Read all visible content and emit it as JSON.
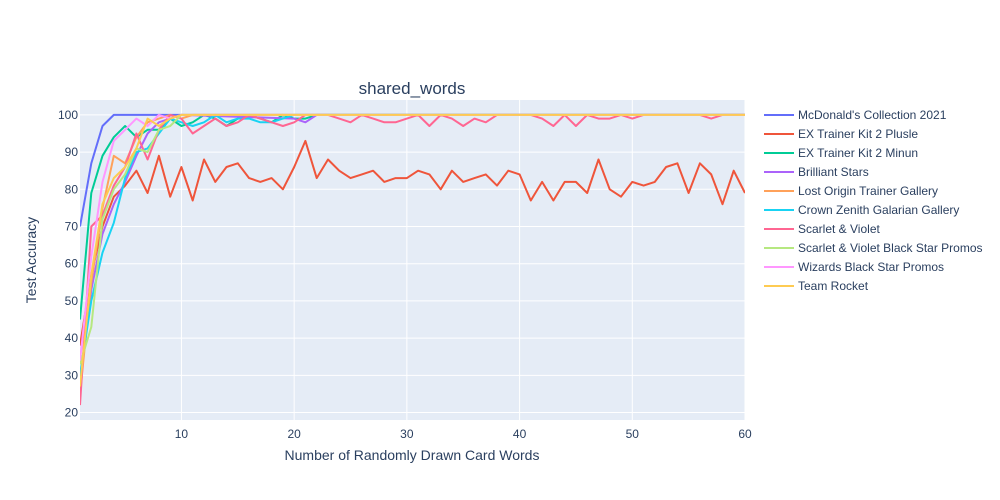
{
  "chart_data": {
    "type": "line",
    "title": "shared_words",
    "xlabel": "Number of Randomly Drawn Card Words",
    "ylabel": "Test Accuracy",
    "xlim": [
      1,
      60
    ],
    "ylim": [
      18,
      104
    ],
    "xticks": [
      10,
      20,
      30,
      40,
      50,
      60
    ],
    "yticks": [
      20,
      30,
      40,
      50,
      60,
      70,
      80,
      90,
      100
    ],
    "grid": true,
    "legend_position": "right",
    "series": [
      {
        "name": "McDonald's Collection 2021",
        "color": "#636efa",
        "points": [
          [
            1,
            70
          ],
          [
            2,
            87
          ],
          [
            3,
            97
          ],
          [
            4,
            100
          ],
          [
            5,
            100
          ],
          [
            6,
            100
          ],
          [
            7,
            100
          ],
          [
            8,
            100
          ],
          [
            9,
            100
          ],
          [
            10,
            100
          ],
          [
            20,
            100
          ],
          [
            30,
            100
          ],
          [
            40,
            100
          ],
          [
            50,
            100
          ],
          [
            60,
            100
          ]
        ]
      },
      {
        "name": "EX Trainer Kit 2 Plusle",
        "color": "#ef553b",
        "points": [
          [
            1,
            38
          ],
          [
            2,
            57
          ],
          [
            3,
            70
          ],
          [
            4,
            78
          ],
          [
            5,
            81
          ],
          [
            6,
            85
          ],
          [
            7,
            79
          ],
          [
            8,
            89
          ],
          [
            9,
            78
          ],
          [
            10,
            86
          ],
          [
            11,
            77
          ],
          [
            12,
            88
          ],
          [
            13,
            82
          ],
          [
            14,
            86
          ],
          [
            15,
            87
          ],
          [
            16,
            83
          ],
          [
            17,
            82
          ],
          [
            18,
            83
          ],
          [
            19,
            80
          ],
          [
            20,
            86
          ],
          [
            21,
            93
          ],
          [
            22,
            83
          ],
          [
            23,
            88
          ],
          [
            24,
            85
          ],
          [
            25,
            83
          ],
          [
            26,
            84
          ],
          [
            27,
            85
          ],
          [
            28,
            82
          ],
          [
            29,
            83
          ],
          [
            30,
            83
          ],
          [
            31,
            85
          ],
          [
            32,
            84
          ],
          [
            33,
            80
          ],
          [
            34,
            85
          ],
          [
            35,
            82
          ],
          [
            36,
            83
          ],
          [
            37,
            84
          ],
          [
            38,
            81
          ],
          [
            39,
            85
          ],
          [
            40,
            84
          ],
          [
            41,
            77
          ],
          [
            42,
            82
          ],
          [
            43,
            77
          ],
          [
            44,
            82
          ],
          [
            45,
            82
          ],
          [
            46,
            79
          ],
          [
            47,
            88
          ],
          [
            48,
            80
          ],
          [
            49,
            78
          ],
          [
            50,
            82
          ],
          [
            51,
            81
          ],
          [
            52,
            82
          ],
          [
            53,
            86
          ],
          [
            54,
            87
          ],
          [
            55,
            79
          ],
          [
            56,
            87
          ],
          [
            57,
            84
          ],
          [
            58,
            76
          ],
          [
            59,
            85
          ],
          [
            60,
            79
          ]
        ]
      },
      {
        "name": "EX Trainer Kit 2 Minun",
        "color": "#00cc96",
        "points": [
          [
            1,
            45
          ],
          [
            2,
            79
          ],
          [
            3,
            89
          ],
          [
            4,
            94
          ],
          [
            5,
            97
          ],
          [
            6,
            94
          ],
          [
            7,
            96
          ],
          [
            8,
            96
          ],
          [
            9,
            99
          ],
          [
            10,
            97
          ],
          [
            11,
            98
          ],
          [
            12,
            100
          ],
          [
            13,
            99
          ],
          [
            14,
            97
          ],
          [
            15,
            99
          ],
          [
            16,
            100
          ],
          [
            17,
            99
          ],
          [
            18,
            98
          ],
          [
            19,
            100
          ],
          [
            20,
            99
          ],
          [
            21,
            99
          ],
          [
            22,
            100
          ],
          [
            30,
            100
          ],
          [
            40,
            100
          ],
          [
            50,
            100
          ],
          [
            60,
            100
          ]
        ]
      },
      {
        "name": "Brilliant Stars",
        "color": "#ab63fa",
        "points": [
          [
            1,
            28
          ],
          [
            2,
            53
          ],
          [
            3,
            68
          ],
          [
            4,
            76
          ],
          [
            5,
            82
          ],
          [
            6,
            89
          ],
          [
            7,
            95
          ],
          [
            8,
            98
          ],
          [
            9,
            99
          ],
          [
            10,
            100
          ],
          [
            20,
            99
          ],
          [
            21,
            98
          ],
          [
            22,
            100
          ],
          [
            30,
            100
          ],
          [
            40,
            100
          ],
          [
            50,
            100
          ],
          [
            60,
            100
          ]
        ]
      },
      {
        "name": "Lost Origin Trainer Gallery",
        "color": "#ffa15a",
        "points": [
          [
            1,
            25
          ],
          [
            2,
            55
          ],
          [
            3,
            75
          ],
          [
            4,
            89
          ],
          [
            5,
            87
          ],
          [
            6,
            94
          ],
          [
            7,
            98
          ],
          [
            8,
            99
          ],
          [
            9,
            100
          ],
          [
            10,
            99
          ],
          [
            11,
            100
          ],
          [
            20,
            100
          ],
          [
            30,
            100
          ],
          [
            40,
            100
          ],
          [
            50,
            100
          ],
          [
            60,
            100
          ]
        ]
      },
      {
        "name": "Crown Zenith Galarian Gallery",
        "color": "#19d3f3",
        "points": [
          [
            1,
            30
          ],
          [
            2,
            50
          ],
          [
            3,
            63
          ],
          [
            4,
            71
          ],
          [
            5,
            83
          ],
          [
            6,
            90
          ],
          [
            7,
            91
          ],
          [
            8,
            95
          ],
          [
            9,
            99
          ],
          [
            10,
            98
          ],
          [
            11,
            97
          ],
          [
            12,
            98
          ],
          [
            13,
            100
          ],
          [
            14,
            98
          ],
          [
            15,
            99
          ],
          [
            16,
            99
          ],
          [
            17,
            98
          ],
          [
            18,
            98
          ],
          [
            19,
            99
          ],
          [
            20,
            100
          ],
          [
            21,
            100
          ],
          [
            30,
            100
          ],
          [
            40,
            100
          ],
          [
            50,
            100
          ],
          [
            60,
            100
          ]
        ]
      },
      {
        "name": "Scarlet & Violet",
        "color": "#ff6692",
        "points": [
          [
            1,
            22
          ],
          [
            2,
            70
          ],
          [
            3,
            73
          ],
          [
            4,
            81
          ],
          [
            5,
            86
          ],
          [
            6,
            95
          ],
          [
            7,
            88
          ],
          [
            8,
            96
          ],
          [
            9,
            100
          ],
          [
            10,
            99
          ],
          [
            11,
            95
          ],
          [
            12,
            97
          ],
          [
            13,
            99
          ],
          [
            14,
            97
          ],
          [
            15,
            98
          ],
          [
            16,
            100
          ],
          [
            17,
            99
          ],
          [
            18,
            98
          ],
          [
            19,
            97
          ],
          [
            20,
            98
          ],
          [
            21,
            100
          ],
          [
            22,
            100
          ],
          [
            23,
            100
          ],
          [
            24,
            99
          ],
          [
            25,
            98
          ],
          [
            26,
            100
          ],
          [
            27,
            99
          ],
          [
            28,
            98
          ],
          [
            29,
            98
          ],
          [
            30,
            99
          ],
          [
            31,
            100
          ],
          [
            32,
            97
          ],
          [
            33,
            100
          ],
          [
            34,
            99
          ],
          [
            35,
            97
          ],
          [
            36,
            99
          ],
          [
            37,
            98
          ],
          [
            38,
            100
          ],
          [
            39,
            100
          ],
          [
            40,
            100
          ],
          [
            41,
            100
          ],
          [
            42,
            99
          ],
          [
            43,
            97
          ],
          [
            44,
            100
          ],
          [
            45,
            97
          ],
          [
            46,
            100
          ],
          [
            47,
            99
          ],
          [
            48,
            99
          ],
          [
            49,
            100
          ],
          [
            50,
            99
          ],
          [
            51,
            100
          ],
          [
            52,
            100
          ],
          [
            53,
            100
          ],
          [
            54,
            100
          ],
          [
            55,
            100
          ],
          [
            56,
            100
          ],
          [
            57,
            99
          ],
          [
            58,
            100
          ],
          [
            59,
            100
          ],
          [
            60,
            100
          ]
        ]
      },
      {
        "name": "Scarlet & Violet Black Star Promos",
        "color": "#b6e880",
        "points": [
          [
            1,
            33
          ],
          [
            2,
            43
          ],
          [
            3,
            72
          ],
          [
            4,
            80
          ],
          [
            5,
            84
          ],
          [
            6,
            91
          ],
          [
            7,
            90
          ],
          [
            8,
            96
          ],
          [
            9,
            97
          ],
          [
            10,
            100
          ],
          [
            20,
            100
          ],
          [
            30,
            100
          ],
          [
            40,
            100
          ],
          [
            50,
            100
          ],
          [
            60,
            100
          ]
        ]
      },
      {
        "name": "Wizards Black Star Promos",
        "color": "#ff97ff",
        "points": [
          [
            1,
            34
          ],
          [
            2,
            62
          ],
          [
            3,
            82
          ],
          [
            4,
            93
          ],
          [
            5,
            96
          ],
          [
            6,
            99
          ],
          [
            7,
            97
          ],
          [
            8,
            100
          ],
          [
            9,
            99
          ],
          [
            10,
            100
          ],
          [
            20,
            100
          ],
          [
            30,
            100
          ],
          [
            40,
            100
          ],
          [
            50,
            100
          ],
          [
            60,
            100
          ]
        ]
      },
      {
        "name": "Team Rocket",
        "color": "#fecb52",
        "points": [
          [
            1,
            27
          ],
          [
            2,
            57
          ],
          [
            3,
            76
          ],
          [
            4,
            83
          ],
          [
            5,
            86
          ],
          [
            6,
            91
          ],
          [
            7,
            99
          ],
          [
            8,
            97
          ],
          [
            9,
            99
          ],
          [
            10,
            100
          ],
          [
            20,
            100
          ],
          [
            30,
            100
          ],
          [
            40,
            100
          ],
          [
            50,
            100
          ],
          [
            60,
            100
          ]
        ]
      }
    ]
  }
}
